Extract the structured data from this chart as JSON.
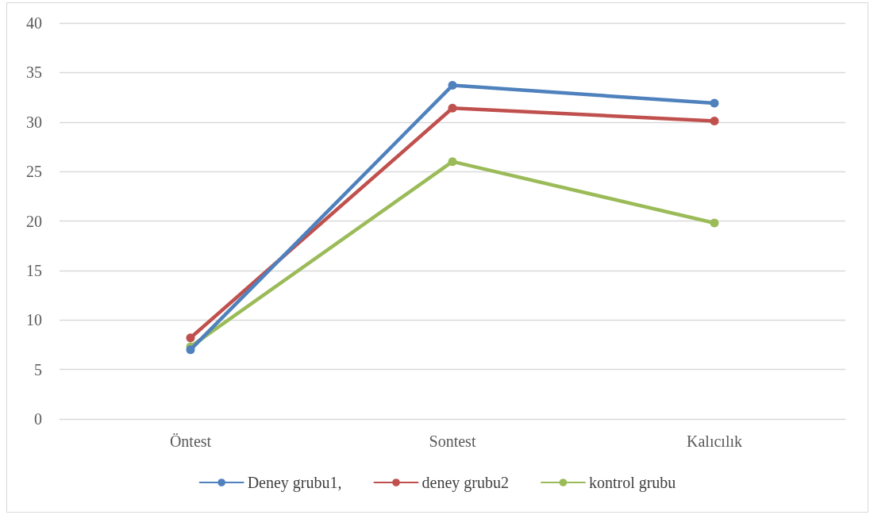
{
  "chart_data": {
    "type": "line",
    "categories": [
      "Öntest",
      "Sontest",
      "Kalıcılık"
    ],
    "series": [
      {
        "name": "Deney grubu1,",
        "color": "#4f81bd",
        "values": [
          7.0,
          33.7,
          31.9
        ]
      },
      {
        "name": "deney grubu2",
        "color": "#c0504d",
        "values": [
          8.2,
          31.4,
          30.1
        ]
      },
      {
        "name": "kontrol grubu",
        "color": "#9bbb59",
        "values": [
          7.3,
          26.0,
          19.8
        ]
      }
    ],
    "ylim": [
      0,
      40
    ],
    "yticks": [
      0,
      5,
      10,
      15,
      20,
      25,
      30,
      35,
      40
    ],
    "grid": "y",
    "legend": "bottom",
    "marker": "circle",
    "line_style": "solid"
  }
}
